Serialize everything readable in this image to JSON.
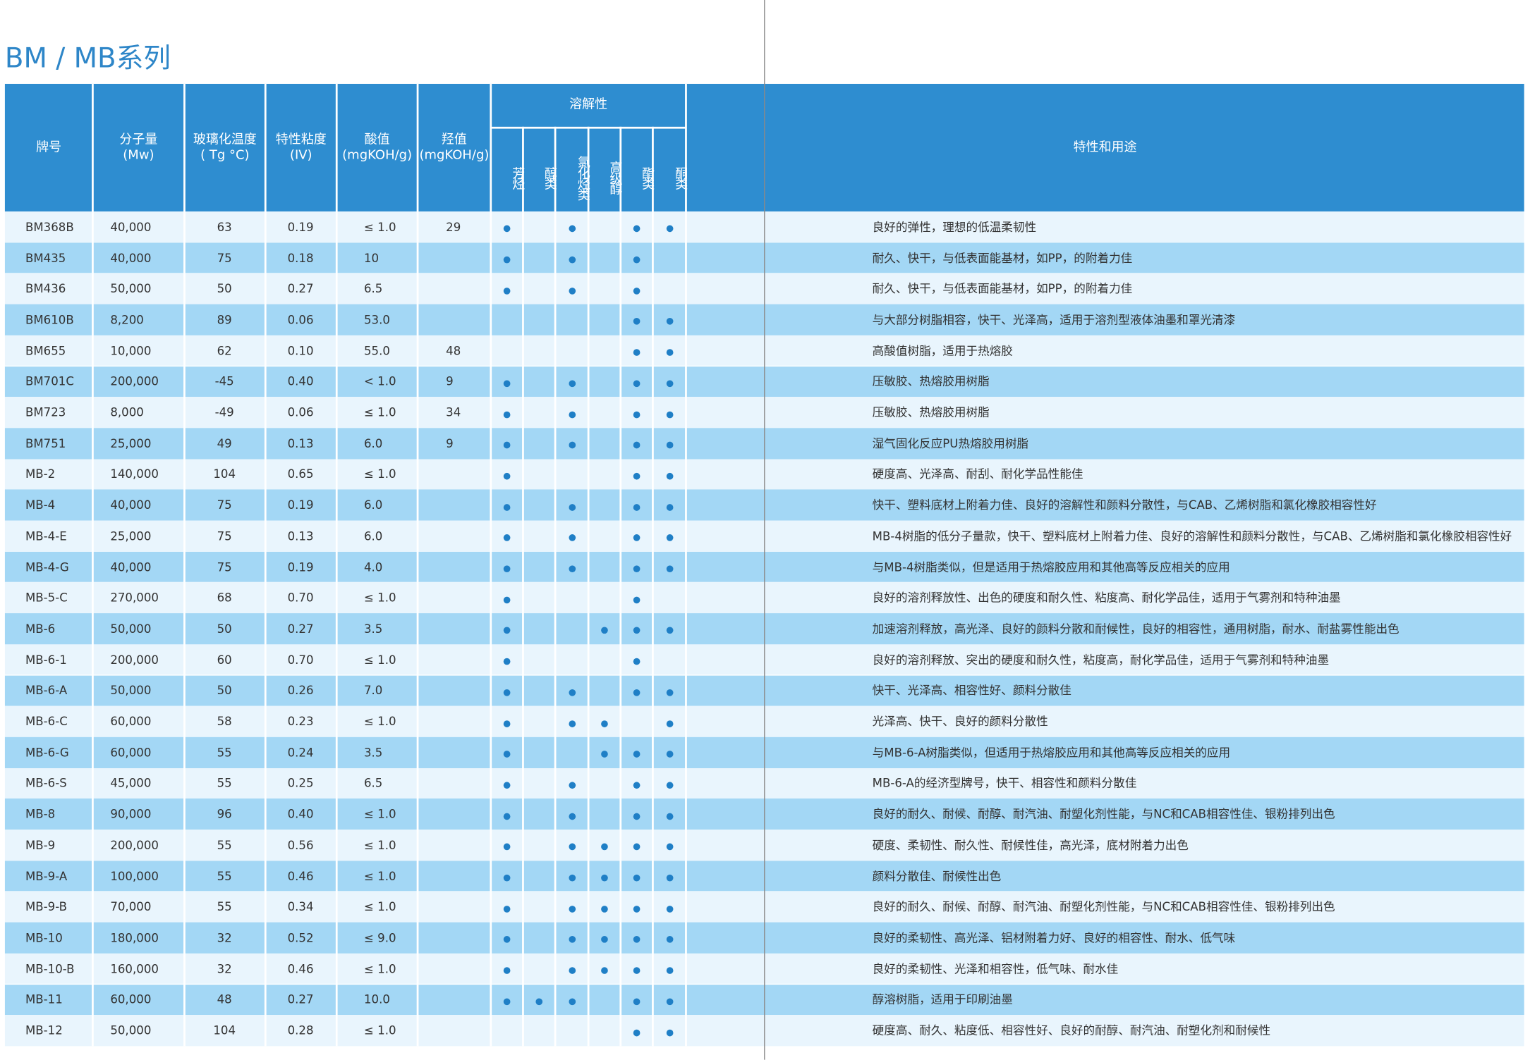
{
  "title": "BM / MB系列",
  "table": {
    "headers": [
      [
        "牌号"
      ],
      [
        "分子量",
        "(Mw)"
      ],
      [
        "玻璃化温度",
        "( Tg °C)"
      ],
      [
        "特性粘度",
        "(IV)"
      ],
      [
        "酸值",
        "(mgKOH/g)"
      ],
      [
        "羟值",
        "(mgKOH/g)"
      ]
    ],
    "solubility_header": "溶解性",
    "solvents": [
      "芳烃",
      "醇类",
      "氯化烃类",
      "高级醇",
      "酯类",
      "酮类"
    ],
    "use_header": "特性和用途",
    "rows": [
      {
        "name": "BM368B",
        "mw": "40,000",
        "tg": "63",
        "iv": "0.19",
        "acid": "≤ 1.0",
        "oh": "29",
        "sol": [
          true,
          false,
          true,
          false,
          true,
          true
        ],
        "use": "良好的弹性，理想的低温柔韧性"
      },
      {
        "name": "BM435",
        "mw": "40,000",
        "tg": "75",
        "iv": "0.18",
        "acid": "10",
        "oh": null,
        "sol": [
          true,
          false,
          true,
          false,
          true,
          false
        ],
        "use": "耐久、快干，与低表面能基材，如PP，的附着力佳"
      },
      {
        "name": "BM436",
        "mw": "50,000",
        "tg": "50",
        "iv": "0.27",
        "acid": "6.5",
        "oh": null,
        "sol": [
          true,
          false,
          true,
          false,
          true,
          false
        ],
        "use": "耐久、快干，与低表面能基材，如PP，的附着力佳"
      },
      {
        "name": "BM610B",
        "mw": "8,200",
        "tg": "89",
        "iv": "0.06",
        "acid": "53.0",
        "oh": null,
        "sol": [
          false,
          false,
          false,
          false,
          true,
          true
        ],
        "use": "与大部分树脂相容，快干、光泽高，适用于溶剂型液体油墨和罩光清漆"
      },
      {
        "name": "BM655",
        "mw": "10,000",
        "tg": "62",
        "iv": "0.10",
        "acid": "55.0",
        "oh": "48",
        "sol": [
          false,
          false,
          false,
          false,
          true,
          true
        ],
        "use": "高酸值树脂，适用于热熔胶"
      },
      {
        "name": "BM701C",
        "mw": "200,000",
        "tg": "-45",
        "iv": "0.40",
        "acid": "< 1.0",
        "oh": "9",
        "sol": [
          true,
          false,
          true,
          false,
          true,
          true
        ],
        "use": "压敏胶、热熔胶用树脂"
      },
      {
        "name": "BM723",
        "mw": "8,000",
        "tg": "-49",
        "iv": "0.06",
        "acid": "≤ 1.0",
        "oh": "34",
        "sol": [
          true,
          false,
          true,
          false,
          true,
          true
        ],
        "use": "压敏胶、热熔胶用树脂"
      },
      {
        "name": "BM751",
        "mw": "25,000",
        "tg": "49",
        "iv": "0.13",
        "acid": "6.0",
        "oh": "9",
        "sol": [
          true,
          false,
          true,
          false,
          true,
          true
        ],
        "use": "湿气固化反应PU热熔胶用树脂"
      },
      {
        "name": "MB-2",
        "mw": "140,000",
        "tg": "104",
        "iv": "0.65",
        "acid": "≤ 1.0",
        "oh": null,
        "sol": [
          true,
          false,
          false,
          false,
          true,
          true
        ],
        "use": "硬度高、光泽高、耐刮、耐化学品性能佳"
      },
      {
        "name": "MB-4",
        "mw": "40,000",
        "tg": "75",
        "iv": "0.19",
        "acid": "6.0",
        "oh": null,
        "sol": [
          true,
          false,
          true,
          false,
          true,
          true
        ],
        "use": "快干、塑料底材上附着力佳、良好的溶解性和颜料分散性，与CAB、乙烯树脂和氯化橡胶相容性好"
      },
      {
        "name": "MB-4-E",
        "mw": "25,000",
        "tg": "75",
        "iv": "0.13",
        "acid": "6.0",
        "oh": null,
        "sol": [
          true,
          false,
          true,
          false,
          true,
          true
        ],
        "use": "MB-4树脂的低分子量款，快干、塑料底材上附着力佳、良好的溶解性和颜料分散性，与CAB、乙烯树脂和氯化橡胶相容性好"
      },
      {
        "name": "MB-4-G",
        "mw": "40,000",
        "tg": "75",
        "iv": "0.19",
        "acid": "4.0",
        "oh": null,
        "sol": [
          true,
          false,
          true,
          false,
          true,
          true
        ],
        "use": "与MB-4树脂类似，但是适用于热熔胶应用和其他高等反应相关的应用"
      },
      {
        "name": "MB-5-C",
        "mw": "270,000",
        "tg": "68",
        "iv": "0.70",
        "acid": "≤ 1.0",
        "oh": null,
        "sol": [
          true,
          false,
          false,
          false,
          true,
          false
        ],
        "use": "良好的溶剂释放性、出色的硬度和耐久性、粘度高、耐化学品佳，适用于气雾剂和特种油墨"
      },
      {
        "name": "MB-6",
        "mw": "50,000",
        "tg": "50",
        "iv": "0.27",
        "acid": "3.5",
        "oh": null,
        "sol": [
          true,
          false,
          false,
          true,
          true,
          true
        ],
        "use": "加速溶剂释放，高光泽、良好的颜料分散和耐候性，良好的相容性，通用树脂，耐水、耐盐雾性能出色"
      },
      {
        "name": "MB-6-1",
        "mw": "200,000",
        "tg": "60",
        "iv": "0.70",
        "acid": "≤ 1.0",
        "oh": null,
        "sol": [
          true,
          false,
          false,
          false,
          true,
          false
        ],
        "use": "良好的溶剂释放、突出的硬度和耐久性，粘度高，耐化学品佳，适用于气雾剂和特种油墨"
      },
      {
        "name": "MB-6-A",
        "mw": "50,000",
        "tg": "50",
        "iv": "0.26",
        "acid": "7.0",
        "oh": null,
        "sol": [
          true,
          false,
          true,
          false,
          true,
          true
        ],
        "use": "快干、光泽高、相容性好、颜料分散佳"
      },
      {
        "name": "MB-6-C",
        "mw": "60,000",
        "tg": "58",
        "iv": "0.23",
        "acid": "≤ 1.0",
        "oh": null,
        "sol": [
          true,
          false,
          true,
          true,
          false,
          true
        ],
        "use": "光泽高、快干、良好的颜料分散性"
      },
      {
        "name": "MB-6-G",
        "mw": "60,000",
        "tg": "55",
        "iv": "0.24",
        "acid": "3.5",
        "oh": null,
        "sol": [
          true,
          false,
          false,
          true,
          true,
          true
        ],
        "use": "与MB-6-A树脂类似，但适用于热熔胶应用和其他高等反应相关的应用"
      },
      {
        "name": "MB-6-S",
        "mw": "45,000",
        "tg": "55",
        "iv": "0.25",
        "acid": "6.5",
        "oh": null,
        "sol": [
          true,
          false,
          true,
          false,
          true,
          true
        ],
        "use": "MB-6-A的经济型牌号，快干、相容性和颜料分散佳"
      },
      {
        "name": "MB-8",
        "mw": "90,000",
        "tg": "96",
        "iv": "0.40",
        "acid": "≤ 1.0",
        "oh": null,
        "sol": [
          true,
          false,
          true,
          false,
          true,
          true
        ],
        "use": "良好的耐久、耐候、耐醇、耐汽油、耐塑化剂性能，与NC和CAB相容性佳、银粉排列出色"
      },
      {
        "name": "MB-9",
        "mw": "200,000",
        "tg": "55",
        "iv": "0.56",
        "acid": "≤ 1.0",
        "oh": null,
        "sol": [
          true,
          false,
          true,
          true,
          true,
          true
        ],
        "use": "硬度、柔韧性、耐久性、耐候性佳，高光泽，底材附着力出色"
      },
      {
        "name": "MB-9-A",
        "mw": "100,000",
        "tg": "55",
        "iv": "0.46",
        "acid": "≤ 1.0",
        "oh": null,
        "sol": [
          true,
          false,
          true,
          true,
          true,
          true
        ],
        "use": "颜料分散佳、耐候性出色"
      },
      {
        "name": "MB-9-B",
        "mw": "70,000",
        "tg": "55",
        "iv": "0.34",
        "acid": "≤ 1.0",
        "oh": null,
        "sol": [
          true,
          false,
          true,
          true,
          true,
          true
        ],
        "use": "良好的耐久、耐候、耐醇、耐汽油、耐塑化剂性能，与NC和CAB相容性佳、银粉排列出色"
      },
      {
        "name": "MB-10",
        "mw": "180,000",
        "tg": "32",
        "iv": "0.52",
        "acid": "≤ 9.0",
        "oh": null,
        "sol": [
          true,
          false,
          true,
          true,
          true,
          true
        ],
        "use": "良好的柔韧性、高光泽、铝材附着力好、良好的相容性、耐水、低气味"
      },
      {
        "name": "MB-10-B",
        "mw": "160,000",
        "tg": "32",
        "iv": "0.46",
        "acid": "≤ 1.0",
        "oh": null,
        "sol": [
          true,
          false,
          true,
          true,
          true,
          true
        ],
        "use": "良好的柔韧性、光泽和相容性，低气味、耐水佳"
      },
      {
        "name": "MB-11",
        "mw": "60,000",
        "tg": "48",
        "iv": "0.27",
        "acid": "10.0",
        "oh": null,
        "sol": [
          true,
          true,
          true,
          false,
          true,
          true
        ],
        "use": "醇溶树脂，适用于印刷油墨"
      },
      {
        "name": "MB-12",
        "mw": "50,000",
        "tg": "104",
        "iv": "0.28",
        "acid": "≤ 1.0",
        "oh": null,
        "sol": [
          false,
          false,
          false,
          false,
          true,
          true
        ],
        "use": "硬度高、耐久、粘度低、相容性好、良好的耐醇、耐汽油、耐塑化剂和耐候性"
      }
    ]
  }
}
